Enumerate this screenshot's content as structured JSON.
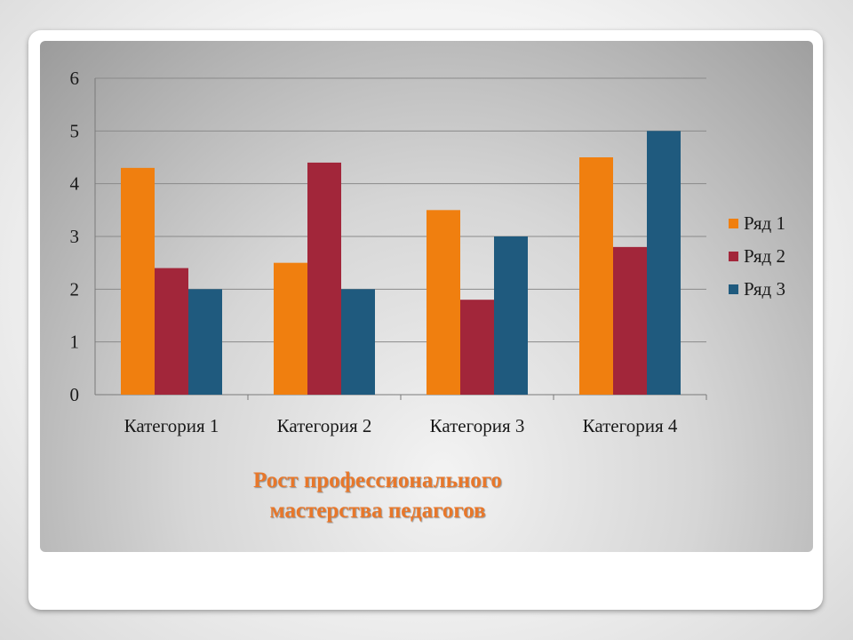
{
  "chart_data": {
    "type": "bar",
    "title_lines": [
      "Рост профессионального",
      "мастерства педагогов"
    ],
    "categories": [
      "Категория 1",
      "Категория 2",
      "Категория 3",
      "Категория 4"
    ],
    "series": [
      {
        "name": "Ряд 1",
        "color": "#f07f0f",
        "values": [
          4.3,
          2.5,
          3.5,
          4.5
        ]
      },
      {
        "name": "Ряд 2",
        "color": "#a2263a",
        "values": [
          2.4,
          4.4,
          1.8,
          2.8
        ]
      },
      {
        "name": "Ряд 3",
        "color": "#1f5a7e",
        "values": [
          2,
          2,
          3,
          5
        ]
      }
    ],
    "ylim": [
      0,
      6
    ],
    "yticks": [
      "0",
      "1",
      "2",
      "3",
      "4",
      "5",
      "6"
    ],
    "grid": true,
    "legend_position": "right"
  }
}
